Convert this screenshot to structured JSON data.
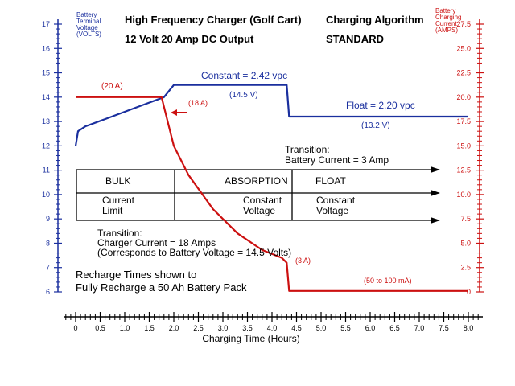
{
  "header": {
    "title": "High Frequency Charger (Golf Cart)",
    "subtitle": "12 Volt 20 Amp DC Output",
    "algorithm_title": "Charging Algorithm",
    "algorithm_name": "STANDARD"
  },
  "axes": {
    "left_label": [
      "Battery",
      "Terminal",
      "Voltage",
      "(VOLTS)"
    ],
    "right_label": [
      "Battery",
      "Charging",
      "Current",
      "(AMPS)"
    ],
    "x_label": "Charging Time (Hours)"
  },
  "annotations": {
    "current_20": "(20 A)",
    "current_18": "(18 A)",
    "constant": "Constant = 2.42 vpc",
    "v145": "(14.5 V)",
    "float": "Float = 2.20 vpc",
    "v132": "(13.2 V)",
    "current_3": "(3 A)",
    "current_float": "(50 to 100 mA)",
    "trans1_a": "Transition:",
    "trans1_b": "Battery Current = 3 Amp",
    "trans2_a": "Transition:",
    "trans2_b": "Charger Current = 18 Amps",
    "trans2_c": "(Corresponds to Battery Voltage = 14.5 Volts)",
    "note_a": "Recharge Times shown to",
    "note_b": "Fully Recharge a 50 Ah Battery Pack"
  },
  "stages": {
    "bulk": "BULK",
    "absorption": "ABSORPTION",
    "float": "FLOAT",
    "bulk_desc": [
      "Current",
      "Limit"
    ],
    "absorption_desc": [
      "Constant",
      "Voltage"
    ],
    "float_desc": [
      "Constant",
      "Voltage"
    ]
  },
  "colors": {
    "voltage": "#1a2f9e",
    "current": "#cc1010",
    "text": "#000000"
  },
  "chart_data": {
    "type": "line",
    "title": "High Frequency Charger (Golf Cart)",
    "x_ticks": [
      "0",
      "0.5",
      "1.0",
      "1.5",
      "2.0",
      "2.5",
      "3.0",
      "3.5",
      "4.0",
      "4.5",
      "5.0",
      "5.5",
      "6.0",
      "6.5",
      "7.0",
      "7.5",
      "8.0"
    ],
    "y_left_ticks": [
      "6",
      "7",
      "8",
      "9",
      "10",
      "11",
      "12",
      "13",
      "14",
      "15",
      "16",
      "17"
    ],
    "y_right_ticks": [
      "0",
      "2.5",
      "5.0",
      "7.5",
      "10.0",
      "12.5",
      "15.0",
      "17.5",
      "20.0",
      "22.5",
      "25.0",
      "27.5"
    ],
    "xlim": [
      0,
      8
    ],
    "ylim_left": [
      6,
      17
    ],
    "ylim_right": [
      0,
      27.5
    ],
    "series": [
      {
        "name": "Battery Terminal Voltage (VOLTS)",
        "axis": "left",
        "x": [
          0,
          0.05,
          0.2,
          0.6,
          1.0,
          1.4,
          1.8,
          2.0,
          4.3,
          4.35,
          8.0
        ],
        "y": [
          12.0,
          12.6,
          12.8,
          13.1,
          13.4,
          13.7,
          14.0,
          14.5,
          14.5,
          13.2,
          13.2
        ]
      },
      {
        "name": "Battery Charging Current (AMPS)",
        "axis": "right",
        "x": [
          0,
          1.75,
          1.8,
          2.0,
          2.3,
          2.8,
          3.3,
          3.8,
          4.2,
          4.3,
          4.35,
          8.0
        ],
        "y": [
          20.0,
          20.0,
          19.0,
          15.0,
          12.0,
          8.5,
          6.0,
          4.3,
          3.5,
          3.0,
          0.1,
          0.1
        ]
      }
    ]
  }
}
